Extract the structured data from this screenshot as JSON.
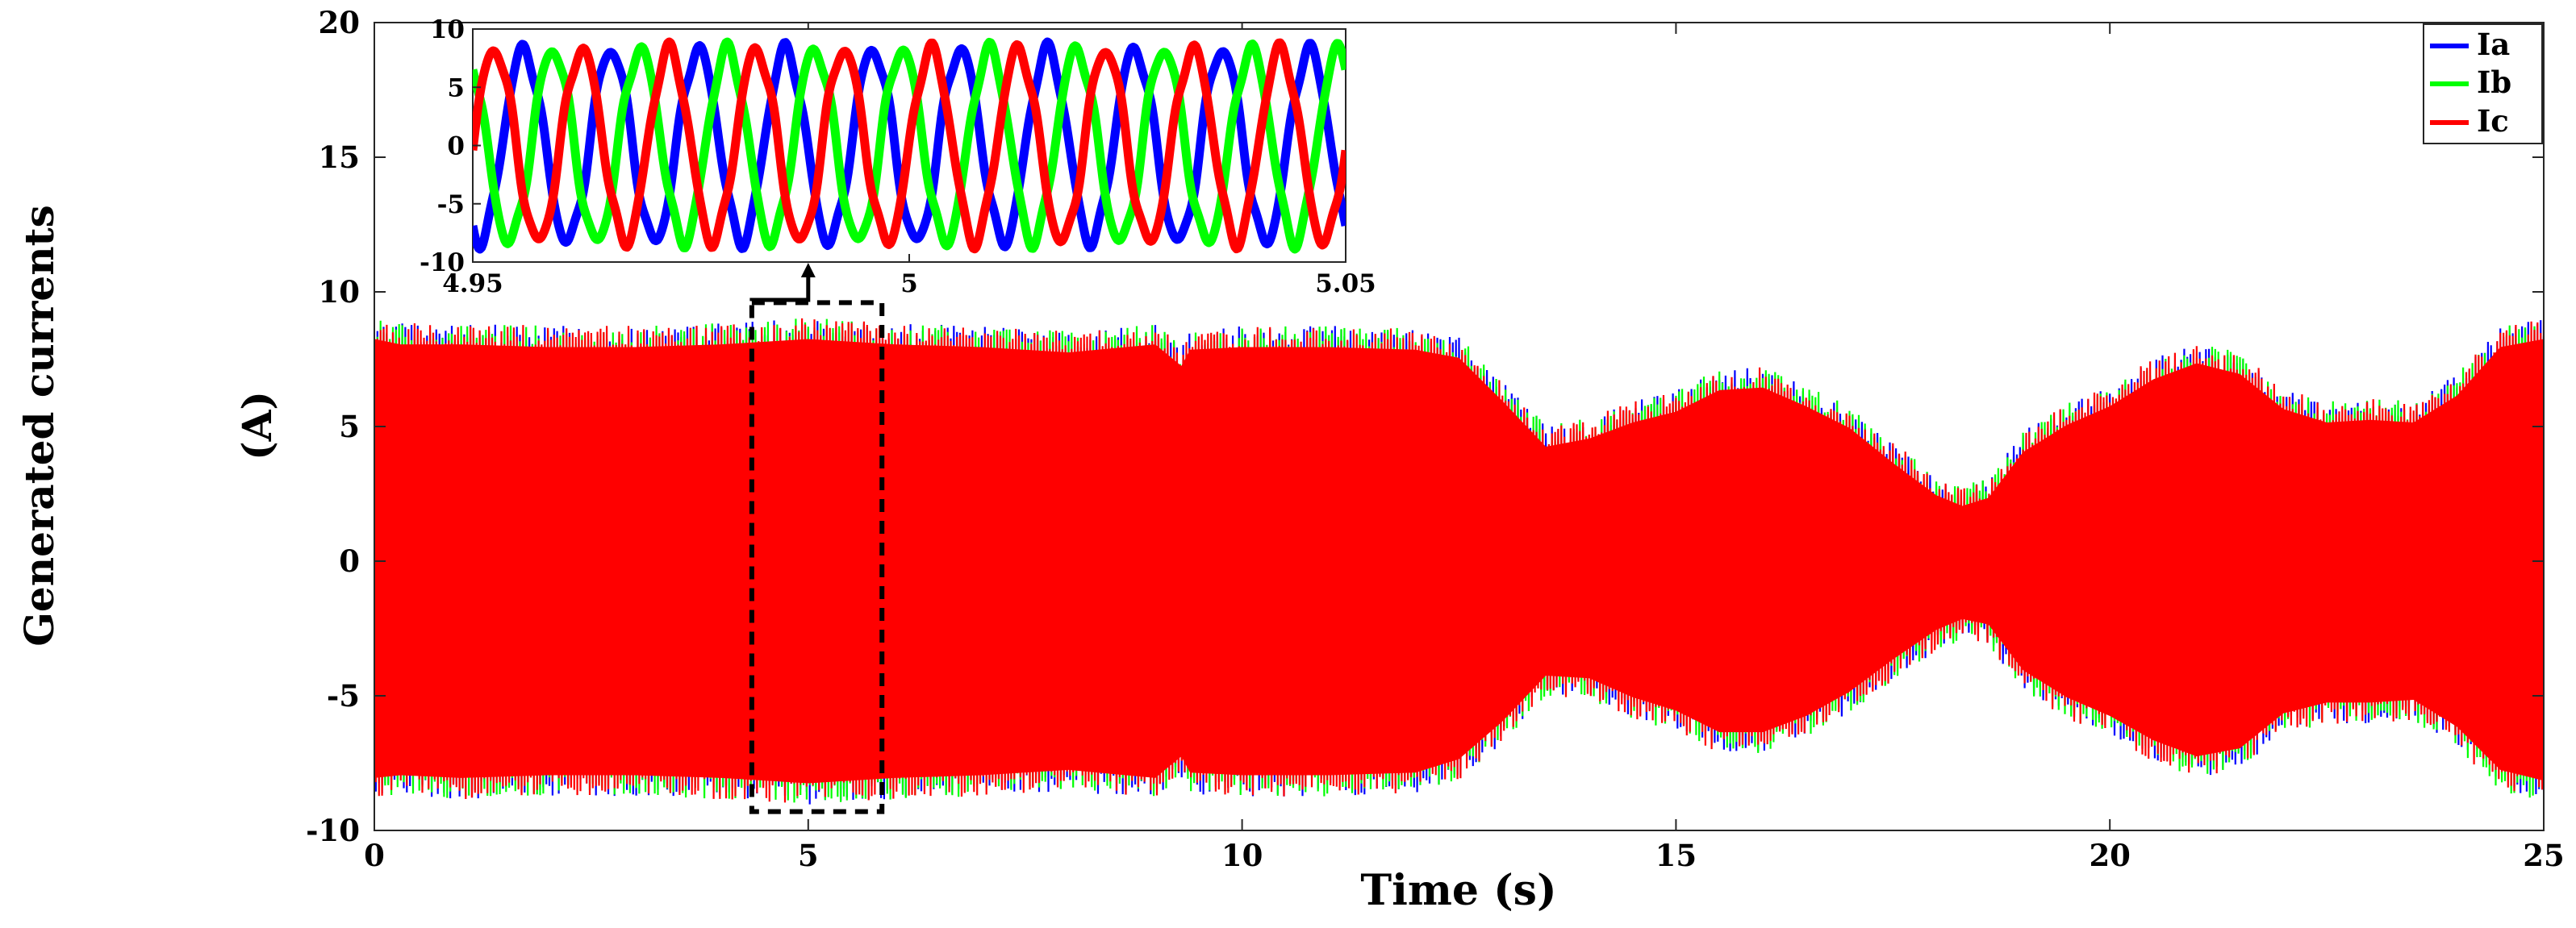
{
  "chart_data": {
    "type": "line",
    "main": {
      "xlabel": "Time (s)",
      "ylabel_line1": "Generated currents",
      "ylabel_line2": "(A)",
      "xlim": [
        0,
        25
      ],
      "ylim": [
        -10,
        20
      ],
      "xticks": [
        0,
        5,
        10,
        15,
        20,
        25
      ],
      "yticks": [
        -10,
        -5,
        0,
        5,
        10,
        15,
        20
      ],
      "envelope": {
        "x": [
          0,
          0.3,
          1,
          2,
          3,
          4,
          5,
          6,
          7,
          8,
          9,
          9.3,
          9.4,
          10,
          11,
          12,
          12.5,
          13,
          13.5,
          14,
          14.5,
          15,
          15.5,
          16,
          16.5,
          17,
          17.5,
          18,
          18.3,
          18.6,
          19,
          19.5,
          20,
          20.5,
          21,
          21.5,
          22,
          22.5,
          23,
          23.5,
          24,
          24.5,
          25
        ],
        "upper": [
          8.5,
          8.3,
          8.3,
          8.2,
          8.2,
          8.3,
          8.5,
          8.3,
          8.2,
          8.0,
          8.3,
          7.5,
          8.1,
          8.2,
          8.2,
          8.1,
          7.8,
          6.2,
          4.5,
          4.8,
          5.4,
          5.8,
          6.6,
          6.7,
          6.0,
          5.2,
          3.9,
          2.7,
          2.3,
          2.6,
          4.3,
          5.3,
          6.0,
          7.0,
          7.6,
          7.2,
          5.9,
          5.4,
          5.5,
          5.4,
          6.4,
          8.2,
          8.5
        ],
        "lower": [
          -8.3,
          -8.2,
          -8.3,
          -8.2,
          -8.2,
          -8.3,
          -8.5,
          -8.3,
          -8.2,
          -8.0,
          -8.3,
          -7.5,
          -8.1,
          -8.2,
          -8.2,
          -8.1,
          -7.6,
          -6.2,
          -4.5,
          -4.6,
          -5.3,
          -5.8,
          -6.6,
          -6.6,
          -6.0,
          -5.1,
          -3.9,
          -2.8,
          -2.4,
          -2.6,
          -4.3,
          -5.3,
          -6.0,
          -6.9,
          -7.5,
          -7.2,
          -5.9,
          -5.5,
          -5.5,
          -5.4,
          -6.4,
          -8.0,
          -8.4
        ]
      }
    },
    "inset": {
      "xlim": [
        4.95,
        5.05
      ],
      "ylim": [
        -10,
        10
      ],
      "xtick_labels": [
        "4.95",
        "5",
        "5.05"
      ],
      "ytick_labels": [
        "10",
        "5",
        "0",
        "-5",
        "-10"
      ],
      "frequency_hz": 100,
      "amplitude": 8.2
    },
    "zoom_box": {
      "x_range": [
        4.35,
        5.85
      ],
      "y_range": [
        -9.3,
        9.6
      ]
    },
    "series": [
      {
        "name": "Ia",
        "color": "#0000ff",
        "phase_deg": -120
      },
      {
        "name": "Ib",
        "color": "#00ff00",
        "phase_deg": 120
      },
      {
        "name": "Ic",
        "color": "#ff0000",
        "phase_deg": 0
      }
    ],
    "legend_position": "top-right",
    "grid": false
  }
}
